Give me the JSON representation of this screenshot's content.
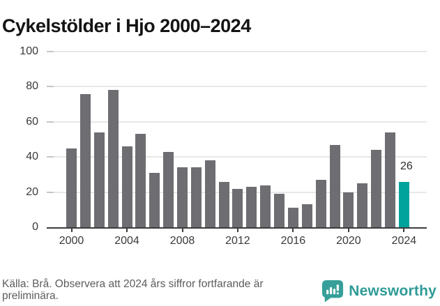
{
  "title": "Cykelstölder i Hjo 2000–2024",
  "chart_data": {
    "type": "bar",
    "title": "Cykelstölder i Hjo 2000–2024",
    "categories": [
      2000,
      2001,
      2002,
      2003,
      2004,
      2005,
      2006,
      2007,
      2008,
      2009,
      2010,
      2011,
      2012,
      2013,
      2014,
      2015,
      2016,
      2017,
      2018,
      2019,
      2020,
      2021,
      2022,
      2023,
      2024
    ],
    "values": [
      45,
      76,
      54,
      78,
      46,
      53,
      31,
      43,
      34,
      34,
      38,
      26,
      22,
      23,
      24,
      19,
      11,
      13,
      27,
      47,
      20,
      25,
      44,
      54,
      26
    ],
    "xlabel": "",
    "ylabel": "",
    "ylim": [
      0,
      100
    ],
    "yticks": [
      0,
      20,
      40,
      60,
      80,
      100
    ],
    "xticks": [
      2000,
      2004,
      2008,
      2012,
      2016,
      2020,
      2024
    ],
    "grid": true,
    "legend": "none",
    "bar_color": "#6d6d72",
    "highlight_color": "#00a39c",
    "highlight_index": 24,
    "annotations": [
      {
        "index": 24,
        "text": "26"
      }
    ]
  },
  "footer": {
    "source_note": "Källa: Brå. Observera att 2024 års siffror fortfarande är preliminära."
  },
  "logo": {
    "text": "Newsworthy",
    "icon": "newsworthy-speech-bubble-chart-icon",
    "icon_color": "#369f99",
    "text_color": "#2e9b96"
  }
}
